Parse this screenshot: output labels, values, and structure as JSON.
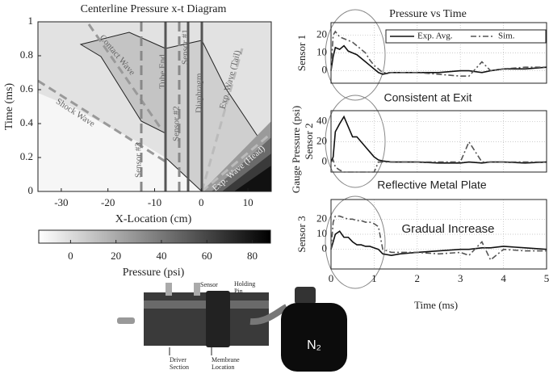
{
  "chart_data": [
    {
      "type": "contour",
      "title": "Centerline Pressure x-t Diagram",
      "x_label": "X-Location (cm)",
      "y_label": "Time (ms)",
      "xlim": [
        -35,
        15
      ],
      "xticks": [
        -30,
        -20,
        -10,
        0,
        10
      ],
      "ylim": [
        0,
        1
      ],
      "yticks": [
        0,
        0.2,
        0.4,
        0.6,
        0.8,
        1
      ],
      "annotations": [
        "Contact Wave",
        "Shock Wave",
        "Tube End",
        "Sensor #1",
        "Diaphragm",
        "Exp. Wave (Tail)",
        "Sensor #2",
        "Sensor #3",
        "Exp. Wave (Head)"
      ],
      "colorbar": {
        "label": "Pressure (psi)",
        "lim": [
          -14,
          88
        ],
        "ticks": [
          0,
          20,
          40,
          60,
          80
        ]
      }
    },
    {
      "type": "line",
      "title": "Pressure vs Time",
      "y_label": "Sensor 1",
      "legend": "upper right",
      "annotation": "Consistent at Exit",
      "x": [
        0,
        0.05,
        0.1,
        0.2,
        0.3,
        0.4,
        0.5,
        0.6,
        0.7,
        0.8,
        0.9,
        1.0,
        1.1,
        1.2,
        1.4,
        1.6,
        2.0,
        2.5,
        3.0,
        3.2,
        3.5,
        3.7,
        4.0,
        4.5,
        5.0
      ],
      "xlim": [
        0,
        5
      ],
      "xticks": [
        0,
        1,
        2,
        3,
        4,
        5
      ],
      "ylim": [
        -7,
        27
      ],
      "yticks": [
        0,
        10,
        20
      ],
      "series": [
        {
          "name": "Exp. Avg.",
          "color": "#111111",
          "style": "solid",
          "values": [
            0,
            8,
            13,
            12,
            14,
            11,
            10,
            9,
            7,
            5,
            3,
            1,
            -1,
            -2,
            -1,
            -1,
            -1,
            -1,
            0,
            0,
            -1,
            0,
            1,
            1,
            2
          ]
        },
        {
          "name": "Sim.",
          "color": "#555555",
          "style": "dashdot",
          "values": [
            0,
            20,
            22,
            19,
            18,
            17,
            16,
            14,
            12,
            10,
            6,
            3,
            1,
            -1,
            -1,
            -1,
            -1,
            -2,
            -3,
            -3,
            5,
            0,
            1,
            2,
            2
          ]
        }
      ]
    },
    {
      "type": "line",
      "y_label": "Sensor 2",
      "shared_y_label": "Gauge Pressure (psi)",
      "annotation": "Reflective Metal Plate",
      "x": [
        0,
        0.05,
        0.1,
        0.2,
        0.3,
        0.4,
        0.5,
        0.6,
        0.7,
        0.8,
        0.9,
        1.0,
        1.1,
        1.2,
        1.4,
        1.6,
        2.0,
        2.5,
        3.0,
        3.2,
        3.5,
        3.7,
        4.0,
        4.5,
        5.0
      ],
      "xlim": [
        0,
        5
      ],
      "xticks": [
        0,
        1,
        2,
        3,
        4,
        5
      ],
      "ylim": [
        -10,
        51
      ],
      "yticks": [
        0,
        20,
        40
      ],
      "series": [
        {
          "color": "#111111",
          "style": "solid",
          "values": [
            0,
            5,
            30,
            38,
            45,
            35,
            25,
            25,
            20,
            15,
            10,
            5,
            2,
            1,
            0,
            0,
            0,
            -1,
            -1,
            0,
            -1,
            0,
            0,
            -1,
            0
          ]
        },
        {
          "color": "#555555",
          "style": "dashdot",
          "values": [
            0,
            2,
            -5,
            -8,
            -10,
            -10,
            -10,
            -10,
            -10,
            -10,
            -10,
            -10,
            0,
            0,
            0,
            0,
            0,
            0,
            0,
            20,
            0,
            0,
            0,
            0,
            0
          ]
        }
      ]
    },
    {
      "type": "line",
      "y_label": "Sensor 3",
      "x_label": "Time (ms)",
      "annotation": "Gradual Increase",
      "x": [
        0,
        0.05,
        0.1,
        0.2,
        0.3,
        0.4,
        0.5,
        0.6,
        0.7,
        0.8,
        0.9,
        1.0,
        1.1,
        1.2,
        1.4,
        1.6,
        2.0,
        2.5,
        3.0,
        3.2,
        3.5,
        3.7,
        4.0,
        4.5,
        5.0
      ],
      "xlim": [
        0,
        5
      ],
      "xticks": [
        0,
        1,
        2,
        3,
        4,
        5
      ],
      "ylim": [
        -13,
        33
      ],
      "yticks": [
        0,
        10,
        20
      ],
      "series": [
        {
          "color": "#111111",
          "style": "solid",
          "values": [
            0,
            5,
            10,
            12,
            8,
            8,
            5,
            3,
            3,
            2,
            2,
            1,
            0,
            -3,
            -4,
            -3,
            -2,
            -1,
            0,
            0,
            1,
            1,
            2,
            1,
            0
          ]
        },
        {
          "color": "#555555",
          "style": "dashdot",
          "values": [
            0,
            18,
            22,
            22,
            21,
            20,
            20,
            19,
            19,
            18,
            18,
            17,
            15,
            0,
            -2,
            -2,
            -2,
            -3,
            -2,
            -4,
            5,
            -7,
            0,
            -1,
            -1
          ]
        }
      ]
    }
  ],
  "photo": {
    "sensor": "Sensor",
    "holding_pin": [
      "Holding",
      "Pin"
    ],
    "driver_section": [
      "Driver",
      "Section"
    ],
    "membrane_location": [
      "Membrane",
      "Location"
    ],
    "gas": "N₂"
  }
}
